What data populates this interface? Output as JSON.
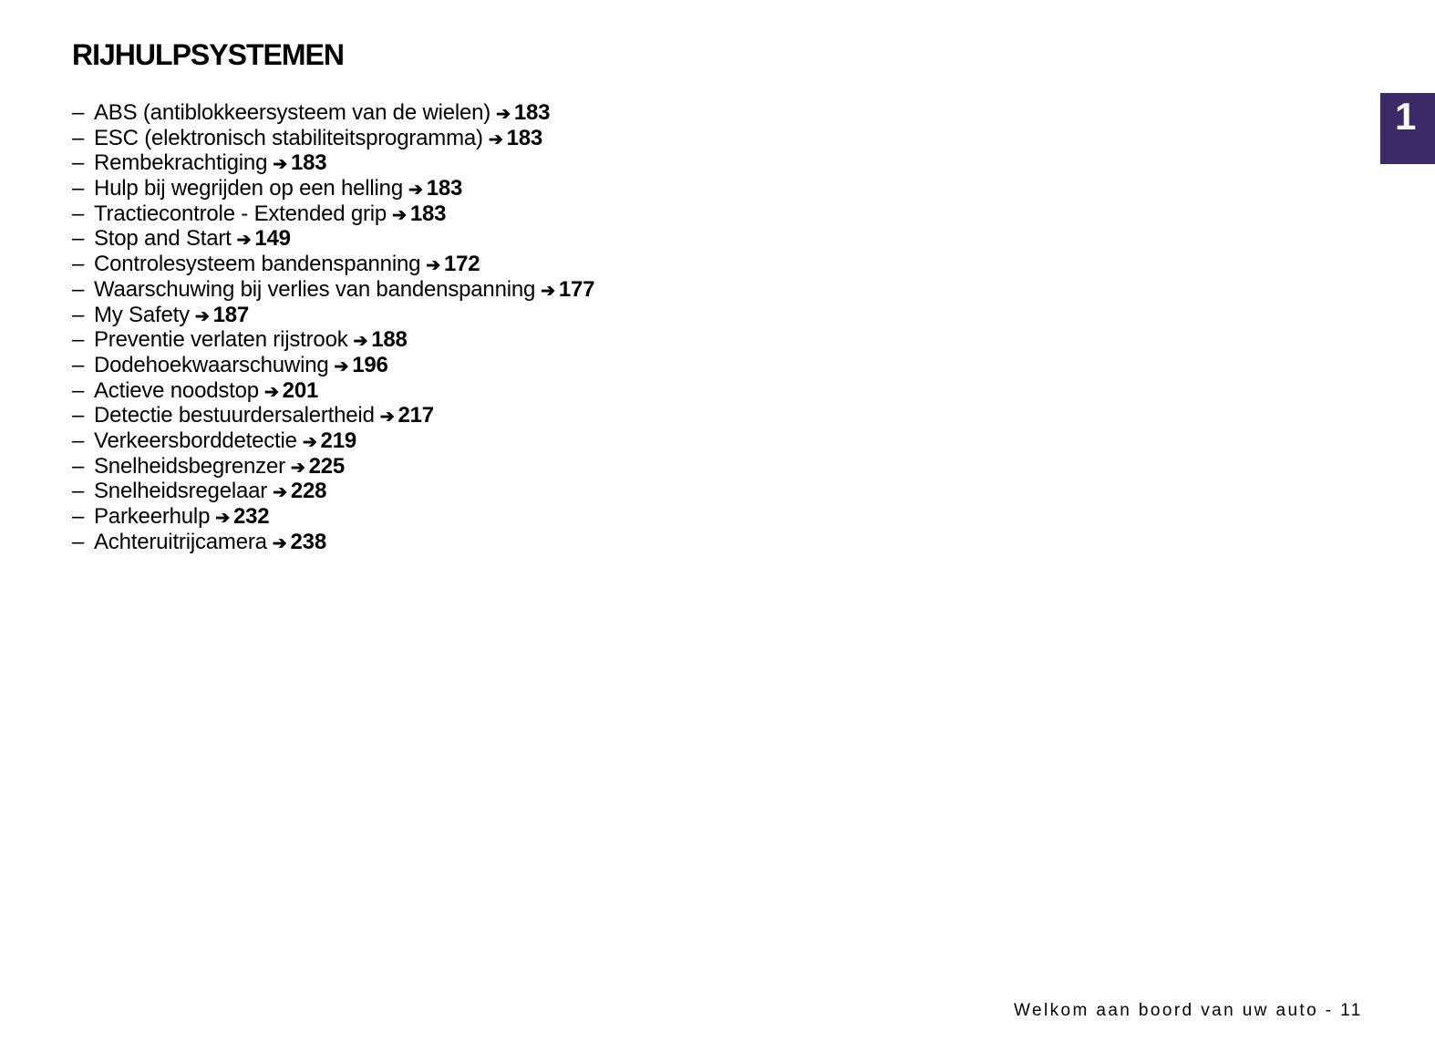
{
  "title": "RIJHULPSYSTEMEN",
  "chapter_tab": "1",
  "accent_color": "#3b2a66",
  "arrow_icon": "right-arrow-icon",
  "items": [
    {
      "label": "ABS (antiblokkeersysteem van de wielen)",
      "page": "183"
    },
    {
      "label": "ESC (elektronisch stabiliteitsprogramma)",
      "page": "183"
    },
    {
      "label": "Rembekrachtiging",
      "page": "183"
    },
    {
      "label": "Hulp bij wegrijden op een helling",
      "page": "183"
    },
    {
      "label": "Tractiecontrole - Extended grip",
      "page": "183"
    },
    {
      "label": "Stop and Start",
      "page": "149"
    },
    {
      "label": "Controlesysteem bandenspanning",
      "page": "172"
    },
    {
      "label": "Waarschuwing bij verlies van bandenspanning",
      "page": "177"
    },
    {
      "label": "My Safety",
      "page": "187"
    },
    {
      "label": "Preventie verlaten rijstrook",
      "page": "188"
    },
    {
      "label": "Dodehoekwaarschuwing",
      "page": "196"
    },
    {
      "label": "Actieve noodstop",
      "page": "201"
    },
    {
      "label": "Detectie bestuurdersalertheid",
      "page": "217"
    },
    {
      "label": "Verkeersborddetectie",
      "page": "219"
    },
    {
      "label": "Snelheidsbegrenzer",
      "page": "225"
    },
    {
      "label": "Snelheidsregelaar",
      "page": "228"
    },
    {
      "label": "Parkeerhulp",
      "page": "232"
    },
    {
      "label": "Achteruitrijcamera",
      "page": "238"
    }
  ],
  "footer": "Welkom aan boord van uw auto - 11"
}
